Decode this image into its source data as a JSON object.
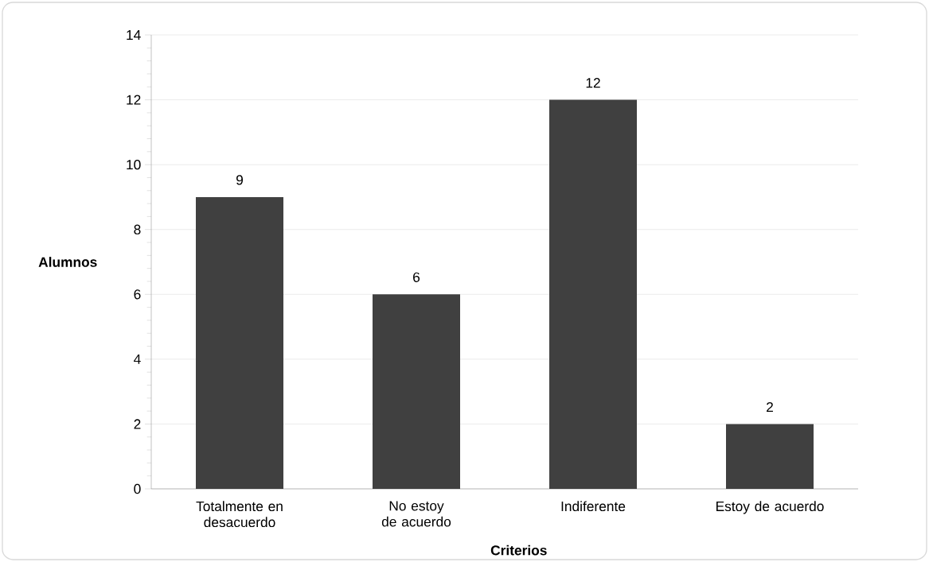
{
  "chart_data": {
    "type": "bar",
    "xlabel": "Criterios",
    "ylabel": "Alumnos",
    "categories": [
      "Totalmente en desacuerdo",
      "No estoy de acuerdo",
      "Indiferente",
      "Estoy de acuerdo"
    ],
    "values": [
      9,
      6,
      12,
      2
    ],
    "color": "#404040",
    "ylim": [
      0,
      14
    ],
    "yticks": [
      0,
      2,
      4,
      6,
      8,
      10,
      12,
      14
    ],
    "grid": "y",
    "data_labels": true
  }
}
